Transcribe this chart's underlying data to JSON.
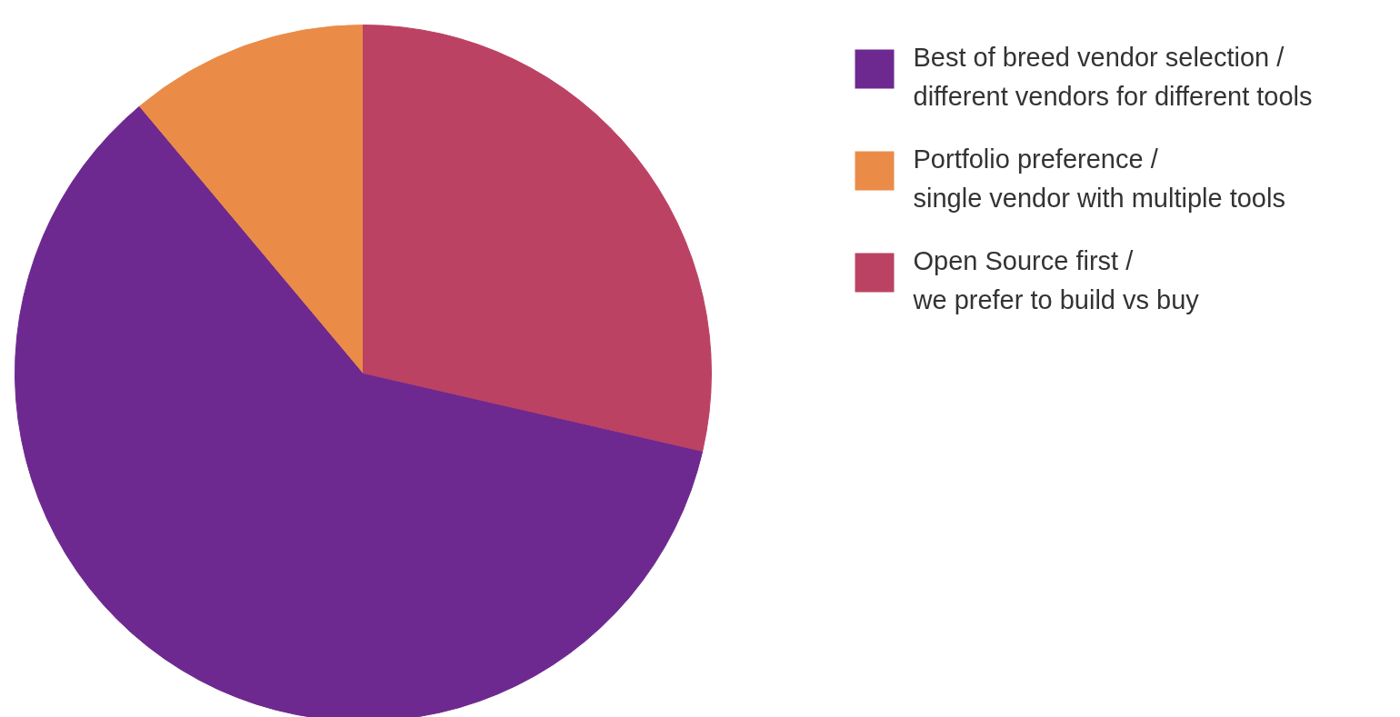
{
  "chart_data": {
    "type": "pie",
    "categories": [
      "Best of breed vendor selection /\ndifferent vendors for different tools",
      "Portfolio preference /\nsingle vendor with multiple tools",
      "Open Source first /\nwe prefer to build vs buy"
    ],
    "values": [
      60.3,
      11.1,
      28.6
    ],
    "colors": [
      "#6d2990",
      "#ea8c47",
      "#bb4263"
    ],
    "legend": "right"
  }
}
